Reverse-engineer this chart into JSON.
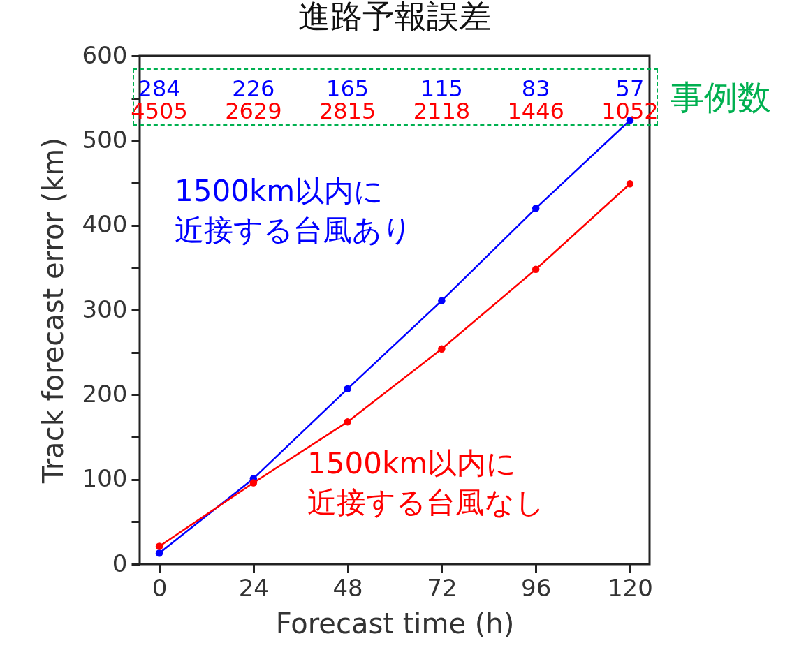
{
  "chart_data": {
    "type": "line",
    "title": "進路予報誤差",
    "xlabel": "Forecast time (h)",
    "ylabel": "Track forecast error (km)",
    "x": [
      0,
      24,
      48,
      72,
      96,
      120
    ],
    "series": [
      {
        "name": "1500km以内に近接する台風あり",
        "color": "#0000ff",
        "values": [
          13,
          101,
          207,
          311,
          420,
          524
        ]
      },
      {
        "name": "1500km以内に近接する台風なし",
        "color": "#ff0000",
        "values": [
          21,
          96,
          168,
          254,
          348,
          449
        ]
      }
    ],
    "xlim": [
      -5,
      125
    ],
    "xticks": [
      0,
      24,
      48,
      72,
      96,
      120
    ],
    "ylim": [
      0,
      600
    ],
    "yticks": [
      0,
      {
        "value": 50,
        "label": null
      },
      100,
      {
        "value": 150,
        "label": null
      },
      200,
      {
        "value": 250,
        "label": null
      },
      300,
      {
        "value": 350,
        "label": null
      },
      400,
      {
        "value": 450,
        "label": null
      },
      500,
      {
        "value": 550,
        "label": null
      },
      600
    ],
    "marker": "circle",
    "grid": false,
    "legend": false,
    "annotations": [
      "284",
      "226",
      "165",
      "115",
      "83",
      "57",
      "4505",
      "2629",
      "2815",
      "2118",
      "1446",
      "1052",
      "事例数"
    ]
  }
}
